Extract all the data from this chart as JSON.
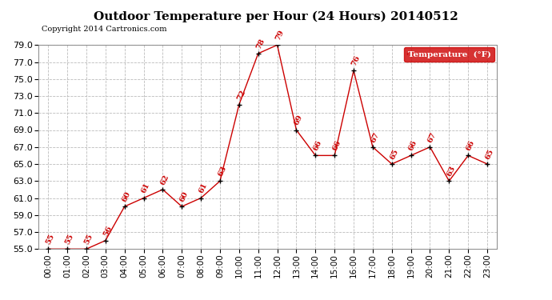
{
  "title": "Outdoor Temperature per Hour (24 Hours) 20140512",
  "copyright": "Copyright 2014 Cartronics.com",
  "legend_label": "Temperature  (°F)",
  "hours": [
    "00:00",
    "01:00",
    "02:00",
    "03:00",
    "04:00",
    "05:00",
    "06:00",
    "07:00",
    "08:00",
    "09:00",
    "10:00",
    "11:00",
    "12:00",
    "13:00",
    "14:00",
    "15:00",
    "16:00",
    "17:00",
    "18:00",
    "19:00",
    "20:00",
    "21:00",
    "22:00",
    "23:00"
  ],
  "temperatures": [
    55,
    55,
    55,
    56,
    60,
    61,
    62,
    60,
    61,
    63,
    72,
    78,
    79,
    69,
    66,
    66,
    76,
    67,
    65,
    66,
    67,
    63,
    66,
    65
  ],
  "ylim": [
    55.0,
    79.0
  ],
  "ytick_step": 2.0,
  "yticks": [
    55.0,
    57.0,
    59.0,
    61.0,
    63.0,
    65.0,
    67.0,
    69.0,
    71.0,
    73.0,
    75.0,
    77.0,
    79.0
  ],
  "line_color": "#cc0000",
  "marker_color": "#000000",
  "label_color": "#cc0000",
  "grid_color": "#bbbbbb",
  "bg_color": "#ffffff",
  "title_fontsize": 11,
  "copyright_fontsize": 7,
  "label_fontsize": 7,
  "legend_bg": "#cc0000",
  "legend_text_color": "#ffffff",
  "tick_fontsize": 7.5,
  "ytick_fontsize": 8
}
